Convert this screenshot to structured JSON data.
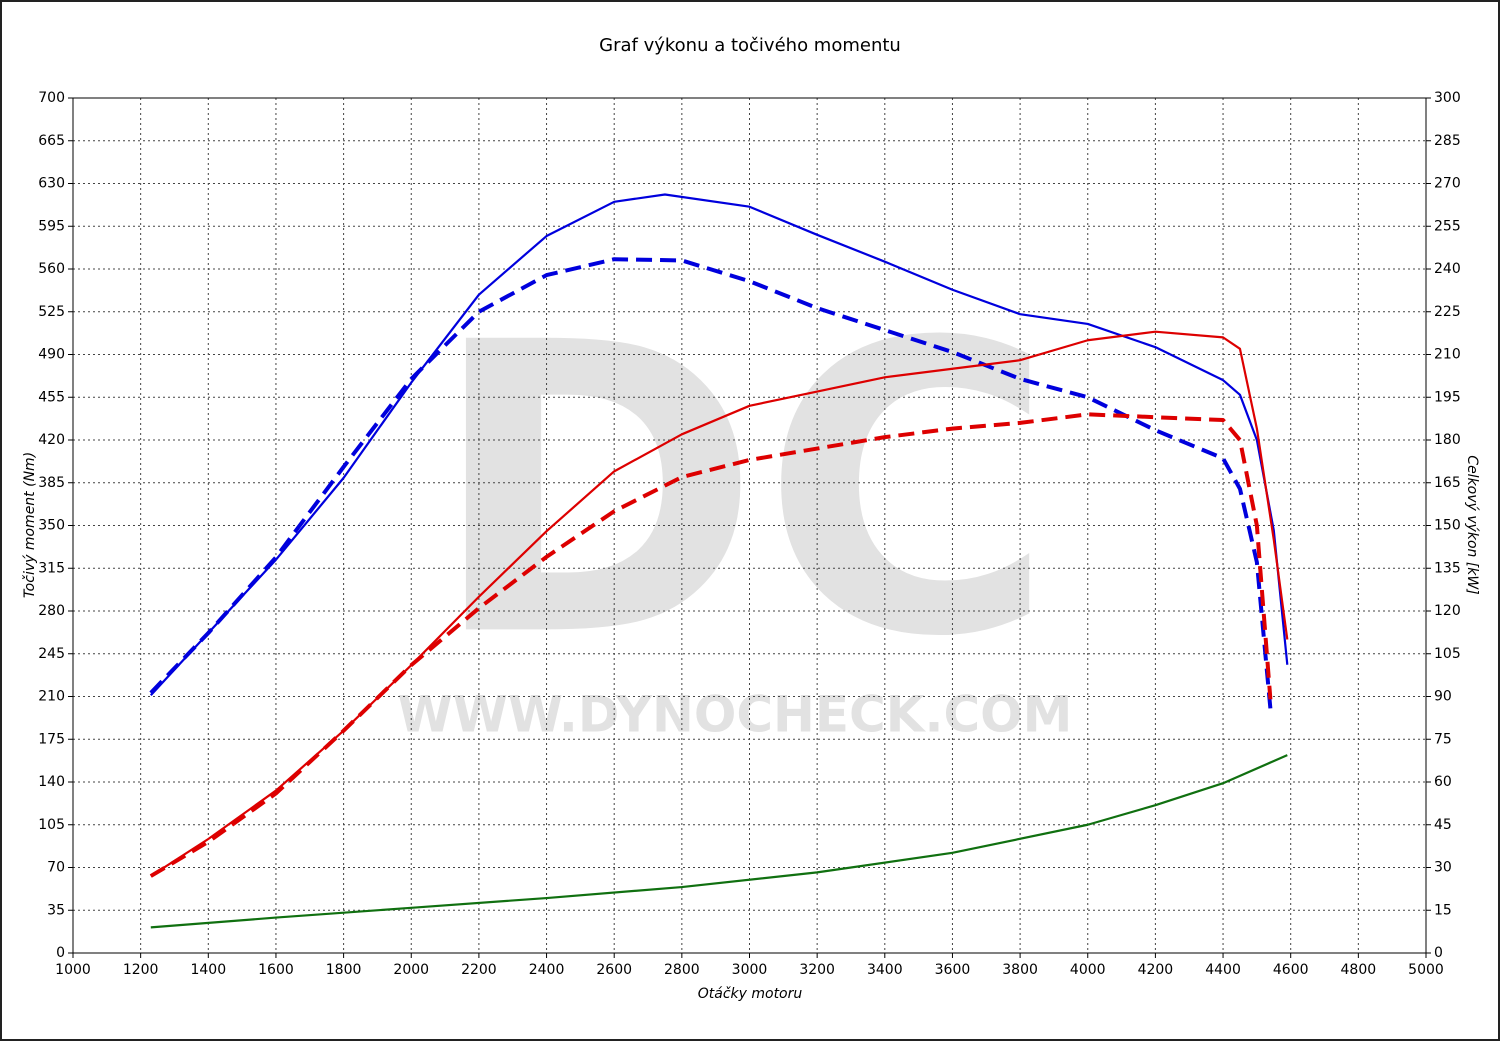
{
  "chart_data": {
    "type": "line",
    "title": "Graf výkonu a točivého momentu",
    "xlabel": "Otáčky motoru",
    "ylabel": "Točivý moment (Nm)",
    "y2label": "Celkový výkon [kW]",
    "watermark": "DC",
    "watermark_url": "WWW.DYNOCHECK.COM",
    "xlim": [
      1000,
      5000
    ],
    "xticks": [
      1000,
      1200,
      1400,
      1600,
      1800,
      2000,
      2200,
      2400,
      2600,
      2800,
      3000,
      3200,
      3400,
      3600,
      3800,
      4000,
      4200,
      4400,
      4600,
      4800,
      5000
    ],
    "ylim": [
      0,
      700
    ],
    "yticks": [
      0,
      35,
      70,
      105,
      140,
      175,
      210,
      245,
      280,
      315,
      350,
      385,
      420,
      455,
      490,
      525,
      560,
      595,
      630,
      665,
      700
    ],
    "y2lim": [
      0,
      300
    ],
    "y2ticks": [
      0,
      15,
      30,
      45,
      60,
      75,
      90,
      105,
      120,
      135,
      150,
      165,
      180,
      195,
      210,
      225,
      240,
      255,
      270,
      285,
      300
    ],
    "grid": true,
    "series": [
      {
        "color": "#0000dd",
        "dash": false,
        "axis": "y",
        "x": [
          1230,
          1400,
          1600,
          1800,
          2000,
          2200,
          2400,
          2600,
          2750,
          3000,
          3200,
          3400,
          3600,
          3800,
          4000,
          4200,
          4400,
          4450,
          4500,
          4550,
          4590
        ],
        "values": [
          211,
          262,
          322,
          389,
          467,
          539,
          587,
          615,
          621,
          611,
          588,
          566,
          543,
          523,
          515,
          496,
          469,
          457,
          420,
          346,
          236
        ]
      },
      {
        "color": "#0000dd",
        "dash": true,
        "axis": "y",
        "x": [
          1230,
          1400,
          1600,
          1800,
          2000,
          2200,
          2400,
          2600,
          2800,
          3000,
          3200,
          3400,
          3600,
          3800,
          4000,
          4200,
          4400,
          4450,
          4500,
          4540
        ],
        "values": [
          213,
          262,
          324,
          398,
          470,
          525,
          555,
          568,
          567,
          550,
          528,
          510,
          492,
          470,
          455,
          428,
          405,
          380,
          320,
          200
        ]
      },
      {
        "color": "#dd0000",
        "dash": false,
        "axis": "y2",
        "x": [
          1230,
          1400,
          1600,
          1800,
          2000,
          2200,
          2400,
          2600,
          2800,
          3000,
          3200,
          3400,
          3600,
          3800,
          4000,
          4200,
          4400,
          4450,
          4500,
          4550,
          4590
        ],
        "values": [
          27,
          40,
          57,
          78,
          101,
          125,
          148,
          169,
          182,
          192,
          197,
          202,
          205,
          208,
          215,
          218,
          216,
          212,
          184,
          145,
          110
        ]
      },
      {
        "color": "#dd0000",
        "dash": true,
        "axis": "y2",
        "x": [
          1230,
          1400,
          1600,
          1800,
          2000,
          2200,
          2400,
          2600,
          2800,
          3000,
          3200,
          3400,
          3600,
          3800,
          4000,
          4200,
          4400,
          4450,
          4500,
          4540
        ],
        "values": [
          27,
          39,
          56,
          78,
          101,
          121,
          139,
          155,
          167,
          173,
          177,
          181,
          184,
          186,
          189,
          188,
          187,
          180,
          150,
          89
        ]
      },
      {
        "color": "#107010",
        "dash": false,
        "axis": "y",
        "x": [
          1230,
          1600,
          2000,
          2400,
          2800,
          3200,
          3600,
          4000,
          4200,
          4400,
          4590
        ],
        "values": [
          21,
          29,
          37,
          45,
          54,
          66,
          82,
          105,
          121,
          139,
          162
        ]
      }
    ]
  }
}
